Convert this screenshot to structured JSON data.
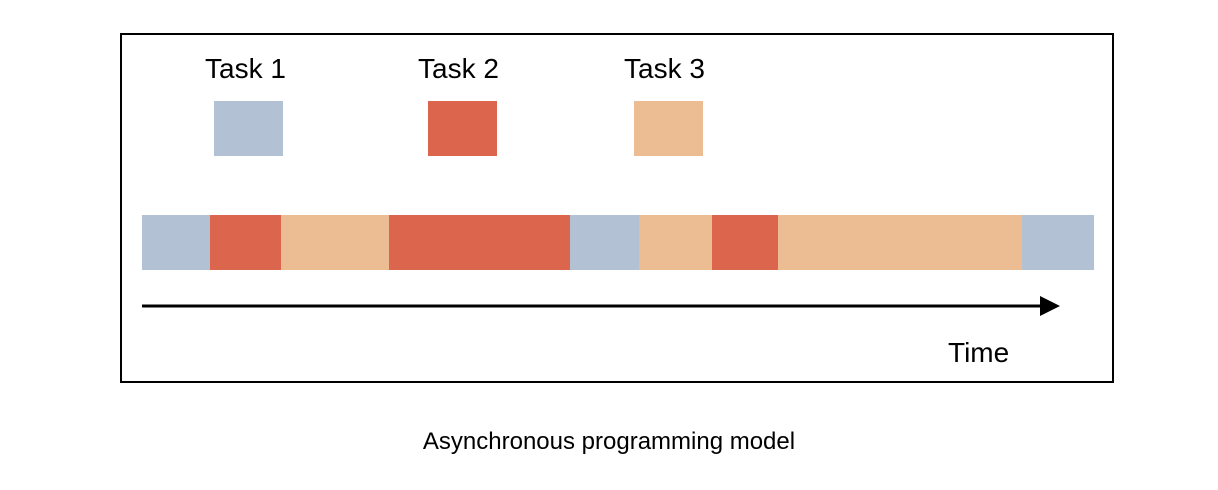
{
  "legend": [
    {
      "label": "Task 1",
      "color": "#b3c1d4"
    },
    {
      "label": "Task 2",
      "color": "#dc654e"
    },
    {
      "label": "Task 3",
      "color": "#ecbd92"
    }
  ],
  "timeline": {
    "segments": [
      {
        "task": 1,
        "duration": 68
      },
      {
        "task": 2,
        "duration": 71
      },
      {
        "task": 3,
        "duration": 108
      },
      {
        "task": 2,
        "duration": 181
      },
      {
        "task": 1,
        "duration": 69
      },
      {
        "task": 3,
        "duration": 73
      },
      {
        "task": 2,
        "duration": 66
      },
      {
        "task": 3,
        "duration": 244
      },
      {
        "task": 1,
        "duration": 72
      }
    ]
  },
  "axis": {
    "label": "Time"
  },
  "caption": "Asynchronous programming model"
}
